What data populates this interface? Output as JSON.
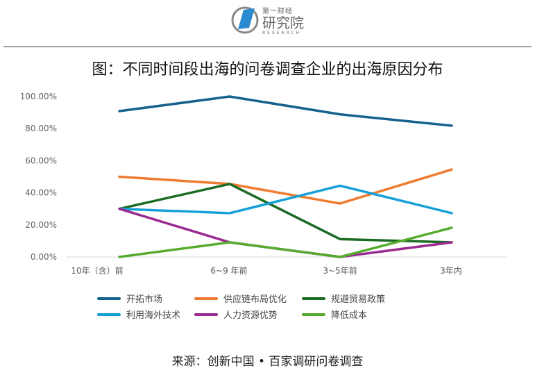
{
  "logo": {
    "line1": "第一财经",
    "line2": "研究院",
    "line3": "RESEARCH"
  },
  "title": "图：不同时间段出海的问卷调查企业的出海原因分布",
  "source": "来源：创新中国 • 百家调研问卷调查",
  "chart_data": {
    "type": "line",
    "title": "图：不同时间段出海的问卷调查企业的出海原因分布",
    "categories": [
      "10年（含）前",
      "6~9 年前",
      "3~5年前",
      "3年内"
    ],
    "yticks": [
      "0.00%",
      "20.00%",
      "40.00%",
      "60.00%",
      "80.00%",
      "100.00%"
    ],
    "ylim": [
      0,
      100
    ],
    "grid": false,
    "legend_position": "bottom",
    "series": [
      {
        "name": "开拓市场",
        "color": "#16628c",
        "values": [
          90.9,
          100,
          88.9,
          81.8
        ]
      },
      {
        "name": "供应链布局优化",
        "color": "#ee7b30",
        "values": [
          50,
          45.5,
          33.3,
          54.5
        ]
      },
      {
        "name": "规避贸易政策",
        "color": "#1b6b23",
        "values": [
          30,
          45.5,
          11.1,
          9.1
        ]
      },
      {
        "name": "利用海外技术",
        "color": "#16a0d8",
        "values": [
          30,
          27.3,
          44.4,
          27.3
        ]
      },
      {
        "name": "人力资源优势",
        "color": "#9b2a90",
        "values": [
          30,
          9.1,
          0,
          9.1
        ]
      },
      {
        "name": "降低成本",
        "color": "#56ab2f",
        "values": [
          0,
          9.1,
          0,
          18.2
        ]
      }
    ]
  }
}
